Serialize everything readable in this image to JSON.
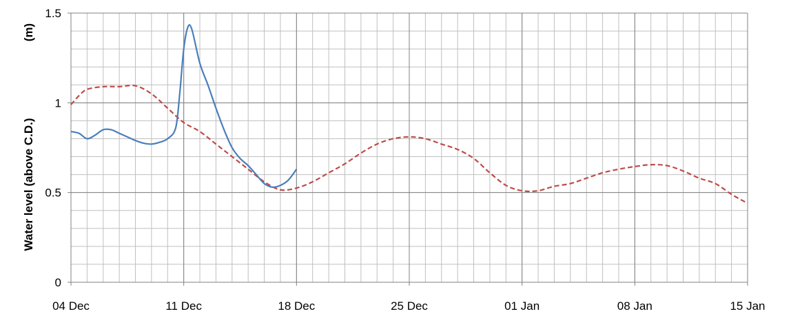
{
  "chart_data": {
    "type": "line",
    "title": "",
    "xlabel": "",
    "ylabel": "Water level (above C.D.)",
    "yunit": "(m)",
    "xlim": [
      "2023-12-04",
      "2024-01-15"
    ],
    "ylim": [
      0,
      1.5
    ],
    "x_ticks": [
      {
        "date": "2023-12-04",
        "label": "04 Dec"
      },
      {
        "date": "2023-12-11",
        "label": "11 Dec"
      },
      {
        "date": "2023-12-18",
        "label": "18 Dec"
      },
      {
        "date": "2023-12-25",
        "label": "25 Dec"
      },
      {
        "date": "2024-01-01",
        "label": "01 Jan"
      },
      {
        "date": "2024-01-08",
        "label": "08 Jan"
      },
      {
        "date": "2024-01-15",
        "label": "15 Jan"
      }
    ],
    "y_ticks": [
      {
        "value": 0,
        "label": "0"
      },
      {
        "value": 0.5,
        "label": "0.5"
      },
      {
        "value": 1,
        "label": "1"
      },
      {
        "value": 1.5,
        "label": "1.5"
      }
    ],
    "grid": true,
    "series": [
      {
        "style": "solid",
        "color": "#4a7ebb",
        "points": [
          [
            "2023-12-04",
            0.84
          ],
          [
            "2023-12-04T12:00",
            0.83
          ],
          [
            "2023-12-05",
            0.8
          ],
          [
            "2023-12-05T12:00",
            0.82
          ],
          [
            "2023-12-06",
            0.85
          ],
          [
            "2023-12-06T12:00",
            0.85
          ],
          [
            "2023-12-07",
            0.83
          ],
          [
            "2023-12-07T12:00",
            0.81
          ],
          [
            "2023-12-08",
            0.79
          ],
          [
            "2023-12-08T12:00",
            0.775
          ],
          [
            "2023-12-09",
            0.77
          ],
          [
            "2023-12-09T12:00",
            0.78
          ],
          [
            "2023-12-10",
            0.8
          ],
          [
            "2023-12-10T12:00",
            0.86
          ],
          [
            "2023-12-10T18:00",
            1.05
          ],
          [
            "2023-12-11",
            1.3
          ],
          [
            "2023-12-11T06:00",
            1.42
          ],
          [
            "2023-12-11T12:00",
            1.41
          ],
          [
            "2023-12-12",
            1.22
          ],
          [
            "2023-12-12T12:00",
            1.1
          ],
          [
            "2023-12-13",
            0.97
          ],
          [
            "2023-12-13T12:00",
            0.85
          ],
          [
            "2023-12-14",
            0.75
          ],
          [
            "2023-12-14T12:00",
            0.69
          ],
          [
            "2023-12-15",
            0.65
          ],
          [
            "2023-12-15T12:00",
            0.6
          ],
          [
            "2023-12-16",
            0.55
          ],
          [
            "2023-12-16T12:00",
            0.53
          ],
          [
            "2023-12-17",
            0.54
          ],
          [
            "2023-12-17T12:00",
            0.57
          ],
          [
            "2023-12-18",
            0.63
          ]
        ]
      },
      {
        "style": "dashed",
        "color": "#be4b48",
        "points": [
          [
            "2023-12-04",
            0.99
          ],
          [
            "2023-12-04T12:00",
            1.04
          ],
          [
            "2023-12-05",
            1.075
          ],
          [
            "2023-12-06",
            1.09
          ],
          [
            "2023-12-07",
            1.09
          ],
          [
            "2023-12-08",
            1.095
          ],
          [
            "2023-12-09",
            1.05
          ],
          [
            "2023-12-10",
            0.97
          ],
          [
            "2023-12-11",
            0.89
          ],
          [
            "2023-12-12",
            0.84
          ],
          [
            "2023-12-13",
            0.77
          ],
          [
            "2023-12-14",
            0.7
          ],
          [
            "2023-12-15",
            0.63
          ],
          [
            "2023-12-16",
            0.56
          ],
          [
            "2023-12-17",
            0.515
          ],
          [
            "2023-12-18",
            0.525
          ],
          [
            "2023-12-19",
            0.56
          ],
          [
            "2023-12-20",
            0.61
          ],
          [
            "2023-12-21",
            0.66
          ],
          [
            "2023-12-22",
            0.72
          ],
          [
            "2023-12-23",
            0.77
          ],
          [
            "2023-12-24",
            0.8
          ],
          [
            "2023-12-25",
            0.81
          ],
          [
            "2023-12-26",
            0.8
          ],
          [
            "2023-12-27",
            0.77
          ],
          [
            "2023-12-28",
            0.74
          ],
          [
            "2023-12-29",
            0.69
          ],
          [
            "2023-12-30",
            0.61
          ],
          [
            "2023-12-31",
            0.54
          ],
          [
            "2024-01-01",
            0.51
          ],
          [
            "2024-01-02",
            0.51
          ],
          [
            "2024-01-03",
            0.535
          ],
          [
            "2024-01-04",
            0.55
          ],
          [
            "2024-01-05",
            0.58
          ],
          [
            "2024-01-06",
            0.61
          ],
          [
            "2024-01-07",
            0.63
          ],
          [
            "2024-01-08",
            0.645
          ],
          [
            "2024-01-09",
            0.655
          ],
          [
            "2024-01-10",
            0.65
          ],
          [
            "2024-01-11",
            0.62
          ],
          [
            "2024-01-12",
            0.58
          ],
          [
            "2024-01-13",
            0.55
          ],
          [
            "2024-01-14",
            0.49
          ],
          [
            "2024-01-15",
            0.44
          ]
        ]
      }
    ]
  }
}
